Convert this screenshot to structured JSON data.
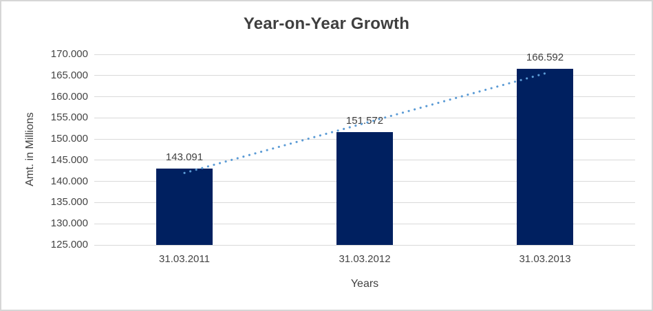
{
  "chart_data": {
    "type": "bar",
    "title": "Year-on-Year Growth",
    "xlabel": "Years",
    "ylabel": "Amt. in Millions",
    "categories": [
      "31.03.2011",
      "31.03.2012",
      "31.03.2013"
    ],
    "values": [
      143091,
      151572,
      166592
    ],
    "value_labels": [
      "143.091",
      "151.572",
      "166.592"
    ],
    "ylim": [
      125000,
      170000
    ],
    "ytick_step": 5000,
    "ytick_labels": [
      "125.000",
      "130.000",
      "135.000",
      "140.000",
      "145.000",
      "150.000",
      "155.000",
      "160.000",
      "165.000",
      "170.000"
    ],
    "grid": true,
    "legend": "none",
    "colors": {
      "bar": "#002060",
      "trendline": "#5B9BD5",
      "gridline": "#d9d9d9",
      "text": "#404040",
      "border": "#d6d6d6",
      "background": "#ffffff"
    },
    "trendline": {
      "kind": "linear",
      "style": "dotted"
    }
  }
}
